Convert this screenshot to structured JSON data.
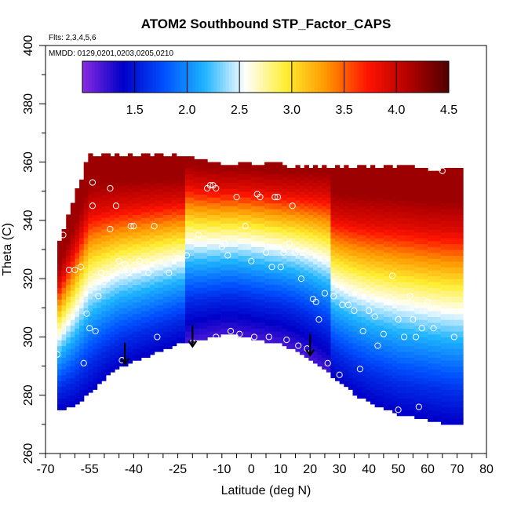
{
  "chart_data": {
    "type": "heatmap",
    "title": "ATOM2 Southbound STP_Factor_CAPS",
    "subtitle_flights": "Flts: 2,3,4,5,6",
    "subtitle_dates": "MMDD: 0129,0201,0203,0205,0210",
    "xlabel": "Latitude (deg N)",
    "ylabel": "Theta (C)",
    "xlim": [
      -70,
      80
    ],
    "ylim": [
      260,
      400
    ],
    "x_ticks_major": [
      -70,
      -55,
      -40,
      -25,
      -10,
      0,
      10,
      20,
      30,
      40,
      50,
      60,
      70,
      80
    ],
    "x_tick_labels": [
      "-70",
      "-55",
      "-40",
      "-25",
      "-10",
      "0",
      "10",
      "20",
      "30",
      "40",
      "50",
      "60",
      "70",
      "80"
    ],
    "y_ticks": [
      260,
      280,
      300,
      320,
      340,
      360,
      380,
      400
    ],
    "y_tick_labels": [
      "260",
      "280",
      "300",
      "320",
      "340",
      "360",
      "380",
      "400"
    ],
    "colorbar": {
      "min": 1.0,
      "max": 4.5,
      "ticks": [
        1.5,
        2.0,
        2.5,
        3.0,
        3.5,
        4.0,
        4.5
      ],
      "tick_labels": [
        "1.5",
        "2.0",
        "2.5",
        "3.0",
        "3.5",
        "4.0",
        "4.5"
      ],
      "colors": [
        "#8a2be2",
        "#0000c8",
        "#0050ff",
        "#1eb4ff",
        "#ffffff",
        "#ffee32",
        "#ff9600",
        "#ff1400",
        "#b40000",
        "#500000"
      ]
    },
    "field_extent": {
      "bottom_boundary": [
        [
          -66,
          275
        ],
        [
          -60,
          277
        ],
        [
          -55,
          281
        ],
        [
          -50,
          286
        ],
        [
          -45,
          290
        ],
        [
          -40,
          292
        ],
        [
          -35,
          294
        ],
        [
          -30,
          296
        ],
        [
          -25,
          298
        ],
        [
          -20,
          299
        ],
        [
          -15,
          300
        ],
        [
          -10,
          301
        ],
        [
          -5,
          301
        ],
        [
          0,
          300
        ],
        [
          5,
          299
        ],
        [
          10,
          298
        ],
        [
          15,
          296
        ],
        [
          20,
          293
        ],
        [
          25,
          289
        ],
        [
          30,
          285
        ],
        [
          35,
          281
        ],
        [
          40,
          278
        ],
        [
          45,
          276
        ],
        [
          50,
          274
        ],
        [
          55,
          273
        ],
        [
          60,
          272
        ],
        [
          65,
          271
        ],
        [
          70,
          270
        ]
      ],
      "top_boundary": [
        [
          -66,
          330
        ],
        [
          -60,
          347
        ],
        [
          -55,
          362
        ],
        [
          -45,
          362
        ],
        [
          -35,
          362
        ],
        [
          -25,
          362
        ],
        [
          -18,
          360
        ],
        [
          -10,
          359
        ],
        [
          0,
          359
        ],
        [
          10,
          358
        ],
        [
          20,
          358
        ],
        [
          30,
          358
        ],
        [
          40,
          358
        ],
        [
          50,
          358
        ],
        [
          60,
          357
        ],
        [
          70,
          357
        ]
      ],
      "high_latitude_edge": 71
    },
    "value_profile_by_theta": [
      [
        270,
        1.2
      ],
      [
        290,
        1.6
      ],
      [
        310,
        2.2
      ],
      [
        325,
        2.8
      ],
      [
        338,
        3.4
      ],
      [
        348,
        3.9
      ],
      [
        358,
        4.2
      ]
    ],
    "sample_points": [
      [
        -67,
        298
      ],
      [
        -66,
        294
      ],
      [
        -64,
        335
      ],
      [
        -62,
        323
      ],
      [
        -60,
        323
      ],
      [
        -58,
        324
      ],
      [
        -57,
        291
      ],
      [
        -56,
        308
      ],
      [
        -55,
        303
      ],
      [
        -54,
        345
      ],
      [
        -54,
        353
      ],
      [
        -53,
        302
      ],
      [
        -52,
        314
      ],
      [
        -51,
        322
      ],
      [
        -50,
        319
      ],
      [
        -48,
        337
      ],
      [
        -48,
        351
      ],
      [
        -46,
        345
      ],
      [
        -45,
        326
      ],
      [
        -44,
        292
      ],
      [
        -43,
        325
      ],
      [
        -42,
        322
      ],
      [
        -41,
        338
      ],
      [
        -40,
        338
      ],
      [
        -38,
        326
      ],
      [
        -35,
        322
      ],
      [
        -33,
        338
      ],
      [
        -32,
        300
      ],
      [
        -30,
        292
      ],
      [
        -28,
        322
      ],
      [
        -25,
        327
      ],
      [
        -22,
        328
      ],
      [
        -20,
        298
      ],
      [
        -18,
        335
      ],
      [
        -15,
        351
      ],
      [
        -14,
        352
      ],
      [
        -13,
        352
      ],
      [
        -12,
        351
      ],
      [
        -12,
        300
      ],
      [
        -10,
        331
      ],
      [
        -9,
        332
      ],
      [
        -8,
        328
      ],
      [
        -7,
        302
      ],
      [
        -5,
        348
      ],
      [
        -4,
        301
      ],
      [
        -2,
        338
      ],
      [
        0,
        326
      ],
      [
        1,
        300
      ],
      [
        2,
        349
      ],
      [
        3,
        348
      ],
      [
        5,
        329
      ],
      [
        6,
        300
      ],
      [
        7,
        324
      ],
      [
        8,
        348
      ],
      [
        9,
        348
      ],
      [
        10,
        324
      ],
      [
        11,
        329
      ],
      [
        12,
        299
      ],
      [
        13,
        332
      ],
      [
        14,
        345
      ],
      [
        15,
        329
      ],
      [
        16,
        297
      ],
      [
        17,
        320
      ],
      [
        18,
        329
      ],
      [
        19,
        296
      ],
      [
        21,
        313
      ],
      [
        22,
        312
      ],
      [
        23,
        306
      ],
      [
        25,
        315
      ],
      [
        26,
        291
      ],
      [
        28,
        314
      ],
      [
        30,
        287
      ],
      [
        31,
        311
      ],
      [
        33,
        311
      ],
      [
        35,
        309
      ],
      [
        37,
        289
      ],
      [
        38,
        302
      ],
      [
        40,
        309
      ],
      [
        42,
        307
      ],
      [
        43,
        297
      ],
      [
        45,
        301
      ],
      [
        47,
        312
      ],
      [
        48,
        321
      ],
      [
        50,
        306
      ],
      [
        50,
        275
      ],
      [
        52,
        300
      ],
      [
        54,
        314
      ],
      [
        55,
        306
      ],
      [
        56,
        300
      ],
      [
        57,
        276
      ],
      [
        58,
        303
      ],
      [
        60,
        312
      ],
      [
        62,
        303
      ],
      [
        65,
        357
      ],
      [
        69,
        300
      ]
    ],
    "arrows_down": [
      [
        -43,
        298
      ],
      [
        -20,
        304
      ],
      [
        20,
        301
      ]
    ]
  }
}
